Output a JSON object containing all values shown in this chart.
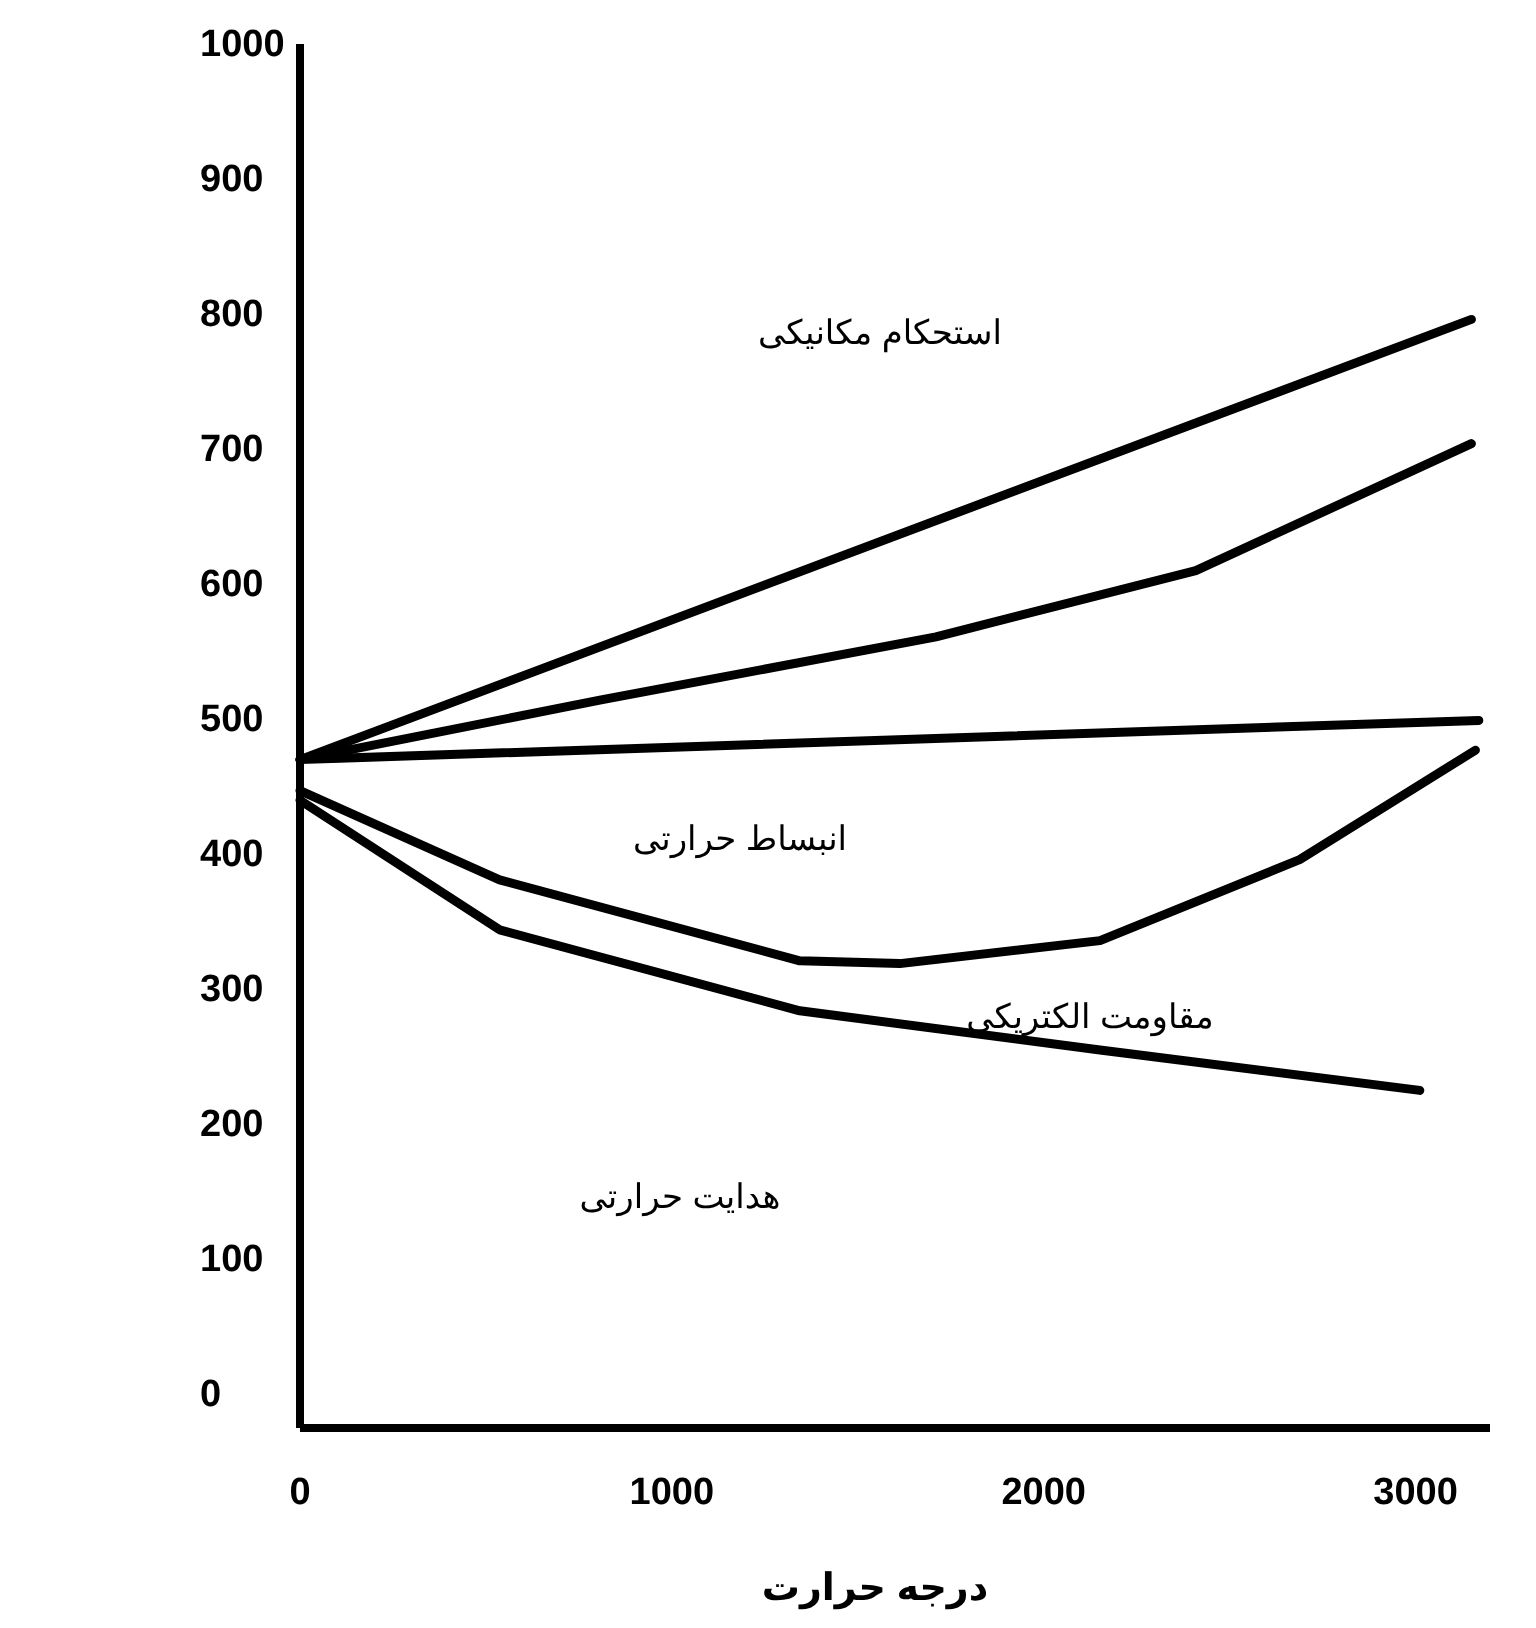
{
  "chart_data": {
    "type": "line",
    "xlabel": "درجه حرارت",
    "xlim": [
      0,
      3200
    ],
    "ylim": [
      -25,
      1000
    ],
    "xticks": [
      0,
      1000,
      2000,
      3000
    ],
    "yticks": [
      0,
      100,
      200,
      300,
      400,
      500,
      600,
      700,
      800,
      900,
      1000
    ],
    "series": [
      {
        "color": "#000000",
        "x": [
          0,
          3150
        ],
        "values": [
          470,
          796
        ]
      },
      {
        "color": "#000000",
        "x": [
          0,
          806,
          1710,
          2409,
          3150
        ],
        "values": [
          470,
          514,
          561,
          610,
          704
        ]
      },
      {
        "color": "#000000",
        "x": [
          0,
          3170
        ],
        "values": [
          470,
          499
        ]
      },
      {
        "color": "#000000",
        "x": [
          0,
          537,
          1344,
          1613,
          2151,
          2688,
          3161
        ],
        "values": [
          447,
          381,
          321,
          319,
          336,
          396,
          477
        ]
      },
      {
        "color": "#000000",
        "x": [
          0,
          537,
          1344,
          2151,
          3011
        ],
        "values": [
          440,
          344,
          284,
          255,
          225
        ]
      }
    ],
    "annotations": [
      "استحکام مکانیکی",
      "انبساط حرارتی",
      "مقاومت الکتریکی",
      "هدایت حرارتی"
    ]
  }
}
